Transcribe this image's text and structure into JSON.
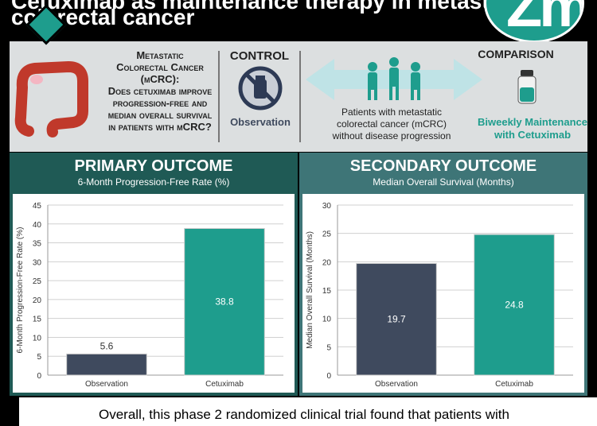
{
  "header": {
    "title_line1": "Cetuximab as maintenance therapy in metastatic",
    "title_line2": "colorectal cancer",
    "logo_text": "Zm"
  },
  "top_panel": {
    "question_line1": "Metastatic",
    "question_line2": "Colorectal Cancer",
    "question_line3": "(mCRC):",
    "question_line4": "Does cetuximab improve",
    "question_line5": "progression-free and",
    "question_line6": "median overall survival",
    "question_line7": "in patients with mCRC?",
    "control_label": "CONTROL",
    "control_arm": "Observation",
    "comparison_label": "COMPARISON",
    "comparison_arm_line1": "Biweekly Maintenance",
    "comparison_arm_line2": "with Cetuximab",
    "patients_line1": "Patients with metastatic",
    "patients_line2": "colorectal cancer (mCRC)",
    "patients_line3": "without disease progression"
  },
  "primary": {
    "title": "PRIMARY OUTCOME",
    "subtitle": "6-Month Progression-Free Rate (%)"
  },
  "secondary": {
    "title": "SECONDARY OUTCOME",
    "subtitle": "Median Overall Survival (Months)"
  },
  "footer": {
    "text": "Overall, this phase 2 randomized clinical trial found that patients with"
  },
  "colors": {
    "observation": "#3f4a5e",
    "cetuximab": "#1e9d8d"
  },
  "chart_data": [
    {
      "type": "bar",
      "categories": [
        "Observation",
        "Cetuximab"
      ],
      "values": [
        5.6,
        38.8
      ],
      "labels": [
        "5.6",
        "38.8"
      ],
      "ylabel": "6-Month Progression-Free Rate (%)",
      "ylim": [
        0,
        45
      ],
      "yticks": [
        0,
        5,
        10,
        15,
        20,
        25,
        30,
        35,
        40,
        45
      ],
      "grid": true
    },
    {
      "type": "bar",
      "categories": [
        "Observation",
        "Cetuximab"
      ],
      "values": [
        19.7,
        24.8
      ],
      "labels": [
        "19.7",
        "24.8"
      ],
      "ylabel": "Median Overall Survival (Months)",
      "ylim": [
        0,
        30
      ],
      "yticks": [
        0,
        5,
        10,
        15,
        20,
        25,
        30
      ],
      "grid": true
    }
  ]
}
